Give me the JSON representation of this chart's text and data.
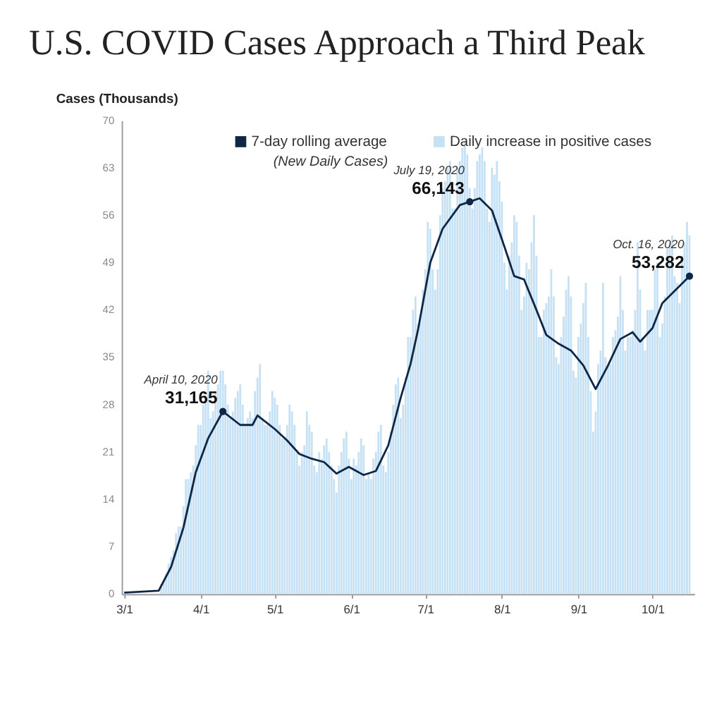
{
  "chart_data": {
    "type": "bar",
    "title": "U.S. COVID Cases Approach a Third Peak",
    "ylabel": "Cases (Thousands)",
    "xlim": [
      "2020-02-29",
      "2020-10-18"
    ],
    "xticks": [
      {
        "value": "2020-03-01",
        "label": "3/1"
      },
      {
        "value": "2020-04-01",
        "label": "4/1"
      },
      {
        "value": "2020-05-01",
        "label": "5/1"
      },
      {
        "value": "2020-06-01",
        "label": "6/1"
      },
      {
        "value": "2020-07-01",
        "label": "7/1"
      },
      {
        "value": "2020-08-01",
        "label": "8/1"
      },
      {
        "value": "2020-09-01",
        "label": "9/1"
      },
      {
        "value": "2020-10-01",
        "label": "10/1"
      }
    ],
    "ylim": [
      0,
      70
    ],
    "yticks": [
      0,
      7,
      14,
      21,
      28,
      35,
      42,
      49,
      56,
      63,
      70
    ],
    "grid": false,
    "legend": "top",
    "marker": "none",
    "line_style": "solid",
    "x": [
      "2020-03-16",
      "2020-03-17",
      "2020-03-18",
      "2020-03-19",
      "2020-03-20",
      "2020-03-21",
      "2020-03-22",
      "2020-03-23",
      "2020-03-24",
      "2020-03-25",
      "2020-03-26",
      "2020-03-27",
      "2020-03-28",
      "2020-03-29",
      "2020-03-30",
      "2020-03-31",
      "2020-04-01",
      "2020-04-02",
      "2020-04-03",
      "2020-04-04",
      "2020-04-05",
      "2020-04-06",
      "2020-04-07",
      "2020-04-08",
      "2020-04-09",
      "2020-04-10",
      "2020-04-11",
      "2020-04-12",
      "2020-04-13",
      "2020-04-14",
      "2020-04-15",
      "2020-04-16",
      "2020-04-17",
      "2020-04-18",
      "2020-04-19",
      "2020-04-20",
      "2020-04-21",
      "2020-04-22",
      "2020-04-23",
      "2020-04-24",
      "2020-04-25",
      "2020-04-26",
      "2020-04-27",
      "2020-04-28",
      "2020-04-29",
      "2020-04-30",
      "2020-05-01",
      "2020-05-02",
      "2020-05-03",
      "2020-05-04",
      "2020-05-05",
      "2020-05-06",
      "2020-05-07",
      "2020-05-08",
      "2020-05-09",
      "2020-05-10",
      "2020-05-11",
      "2020-05-12",
      "2020-05-13",
      "2020-05-14",
      "2020-05-15",
      "2020-05-16",
      "2020-05-17",
      "2020-05-18",
      "2020-05-19",
      "2020-05-20",
      "2020-05-21",
      "2020-05-22",
      "2020-05-23",
      "2020-05-24",
      "2020-05-25",
      "2020-05-26",
      "2020-05-27",
      "2020-05-28",
      "2020-05-29",
      "2020-05-30",
      "2020-05-31",
      "2020-06-01",
      "2020-06-02",
      "2020-06-03",
      "2020-06-04",
      "2020-06-05",
      "2020-06-06",
      "2020-06-07",
      "2020-06-08",
      "2020-06-09",
      "2020-06-10",
      "2020-06-11",
      "2020-06-12",
      "2020-06-13",
      "2020-06-14",
      "2020-06-15",
      "2020-06-16",
      "2020-06-17",
      "2020-06-18",
      "2020-06-19",
      "2020-06-20",
      "2020-06-21",
      "2020-06-22",
      "2020-06-23",
      "2020-06-24",
      "2020-06-25",
      "2020-06-26",
      "2020-06-27",
      "2020-06-28",
      "2020-06-29",
      "2020-06-30",
      "2020-07-01",
      "2020-07-02",
      "2020-07-03",
      "2020-07-04",
      "2020-07-05",
      "2020-07-06",
      "2020-07-07",
      "2020-07-08",
      "2020-07-09",
      "2020-07-10",
      "2020-07-11",
      "2020-07-12",
      "2020-07-13",
      "2020-07-14",
      "2020-07-15",
      "2020-07-16",
      "2020-07-17",
      "2020-07-18",
      "2020-07-19",
      "2020-07-20",
      "2020-07-21",
      "2020-07-22",
      "2020-07-23",
      "2020-07-24",
      "2020-07-25",
      "2020-07-26",
      "2020-07-27",
      "2020-07-28",
      "2020-07-29",
      "2020-07-30",
      "2020-07-31",
      "2020-08-01",
      "2020-08-02",
      "2020-08-03",
      "2020-08-04",
      "2020-08-05",
      "2020-08-06",
      "2020-08-07",
      "2020-08-08",
      "2020-08-09",
      "2020-08-10",
      "2020-08-11",
      "2020-08-12",
      "2020-08-13",
      "2020-08-14",
      "2020-08-15",
      "2020-08-16",
      "2020-08-17",
      "2020-08-18",
      "2020-08-19",
      "2020-08-20",
      "2020-08-21",
      "2020-08-22",
      "2020-08-23",
      "2020-08-24",
      "2020-08-25",
      "2020-08-26",
      "2020-08-27",
      "2020-08-28",
      "2020-08-29",
      "2020-08-30",
      "2020-08-31",
      "2020-09-01",
      "2020-09-02",
      "2020-09-03",
      "2020-09-04",
      "2020-09-05",
      "2020-09-06",
      "2020-09-07",
      "2020-09-08",
      "2020-09-09",
      "2020-09-10",
      "2020-09-11",
      "2020-09-12",
      "2020-09-13",
      "2020-09-14",
      "2020-09-15",
      "2020-09-16",
      "2020-09-17",
      "2020-09-18",
      "2020-09-19",
      "2020-09-20",
      "2020-09-21",
      "2020-09-22",
      "2020-09-23",
      "2020-09-24",
      "2020-09-25",
      "2020-09-26",
      "2020-09-27",
      "2020-09-28",
      "2020-09-29",
      "2020-09-30",
      "2020-10-01",
      "2020-10-02",
      "2020-10-03",
      "2020-10-04",
      "2020-10-05",
      "2020-10-06",
      "2020-10-07",
      "2020-10-08",
      "2020-10-09",
      "2020-10-10",
      "2020-10-11",
      "2020-10-12",
      "2020-10-13",
      "2020-10-14",
      "2020-10-15",
      "2020-10-16"
    ],
    "series": [
      {
        "name": "7-day rolling average\n(New Daily Cases)",
        "type": "line",
        "color": "#0f2747",
        "x": [
          "2020-03-01",
          "2020-03-15",
          "2020-03-20",
          "2020-03-25",
          "2020-03-30",
          "2020-04-04",
          "2020-04-10",
          "2020-04-17",
          "2020-04-22",
          "2020-04-24",
          "2020-05-01",
          "2020-05-06",
          "2020-05-11",
          "2020-05-16",
          "2020-05-21",
          "2020-05-26",
          "2020-05-31",
          "2020-06-06",
          "2020-06-11",
          "2020-06-16",
          "2020-06-21",
          "2020-06-25",
          "2020-06-28",
          "2020-07-03",
          "2020-07-08",
          "2020-07-15",
          "2020-07-19",
          "2020-07-23",
          "2020-07-28",
          "2020-08-02",
          "2020-08-06",
          "2020-08-10",
          "2020-08-15",
          "2020-08-19",
          "2020-08-24",
          "2020-08-29",
          "2020-09-03",
          "2020-09-08",
          "2020-09-13",
          "2020-09-18",
          "2020-09-23",
          "2020-09-26",
          "2020-10-01",
          "2020-10-05",
          "2020-10-16"
        ],
        "values": [
          0.2,
          0.5,
          4,
          9.8,
          18,
          23,
          27,
          25,
          25,
          26.4,
          24.4,
          22.7,
          20.7,
          20,
          19.5,
          17.8,
          18.8,
          17.6,
          18.2,
          22,
          29,
          34,
          39,
          49,
          54,
          57.5,
          58,
          58.5,
          56.7,
          51.4,
          47,
          46.5,
          42,
          38.3,
          37,
          36,
          33.8,
          30.3,
          33.8,
          37.7,
          38.7,
          37.3,
          39.3,
          43,
          47
        ]
      },
      {
        "name": "Daily increase in positive cases",
        "color": "#c6e1f4",
        "values": [
          1.5,
          2,
          3,
          4.5,
          5.5,
          6.5,
          9,
          10,
          10,
          13,
          17,
          17,
          18,
          19,
          22,
          25,
          25,
          28,
          29,
          33,
          26,
          27,
          30,
          31,
          33,
          33,
          31,
          28,
          26,
          27,
          29,
          30,
          31,
          28,
          25,
          26,
          27,
          26,
          30,
          32,
          34,
          26,
          25,
          25,
          27,
          30,
          29,
          28,
          25,
          23,
          23,
          25,
          28,
          27,
          25,
          21,
          19,
          21,
          22,
          27,
          25,
          24,
          19,
          18,
          21,
          20,
          22,
          23,
          21,
          19,
          17,
          15,
          19,
          21,
          23,
          24,
          20,
          17,
          20,
          19,
          21,
          23,
          22,
          17,
          18,
          17,
          20,
          21,
          24,
          25,
          19,
          18,
          21,
          24,
          28,
          31,
          32,
          26,
          28,
          32,
          38,
          38,
          42,
          44,
          40,
          41,
          45,
          48,
          55,
          54,
          48,
          45,
          48,
          56,
          60,
          61,
          63,
          64,
          57,
          57,
          63,
          64,
          66,
          67,
          65,
          60,
          57,
          60,
          64,
          65,
          66,
          64,
          57,
          55,
          63,
          62,
          64,
          61,
          58,
          49,
          45,
          50,
          52,
          56,
          55,
          50,
          42,
          44,
          49,
          48,
          52,
          56,
          50,
          38,
          38,
          42,
          43,
          44,
          48,
          44,
          35,
          34,
          38,
          41,
          45,
          47,
          44,
          33,
          32,
          38,
          40,
          43,
          46,
          38,
          30,
          24,
          27,
          34,
          36,
          46,
          35,
          34,
          34,
          38,
          39,
          41,
          47,
          42,
          36,
          38,
          38,
          39,
          42,
          52,
          45,
          38,
          36,
          42,
          42,
          42,
          48,
          49,
          38,
          40,
          44,
          51,
          52,
          53,
          47,
          46,
          43,
          50,
          52,
          55,
          53
        ]
      },
      {
        "type": "scatter",
        "marker": "circle",
        "color": "#0f2747",
        "x": [
          "2020-04-10",
          "2020-07-19",
          "2020-10-16"
        ],
        "values": [
          27,
          58,
          47
        ]
      }
    ],
    "annotations": [
      {
        "text": "April 10, 2020",
        "x": "2020-04-10",
        "y": 27
      },
      {
        "text": "31,165",
        "x": "2020-04-10",
        "y": 27
      },
      {
        "text": "July 19, 2020",
        "x": "2020-07-19",
        "y": 58
      },
      {
        "text": "66,143",
        "x": "2020-07-19",
        "y": 58
      },
      {
        "text": "Oct. 16, 2020",
        "x": "2020-10-16",
        "y": 47
      },
      {
        "text": "53,282",
        "x": "2020-10-16",
        "y": 47
      }
    ]
  }
}
